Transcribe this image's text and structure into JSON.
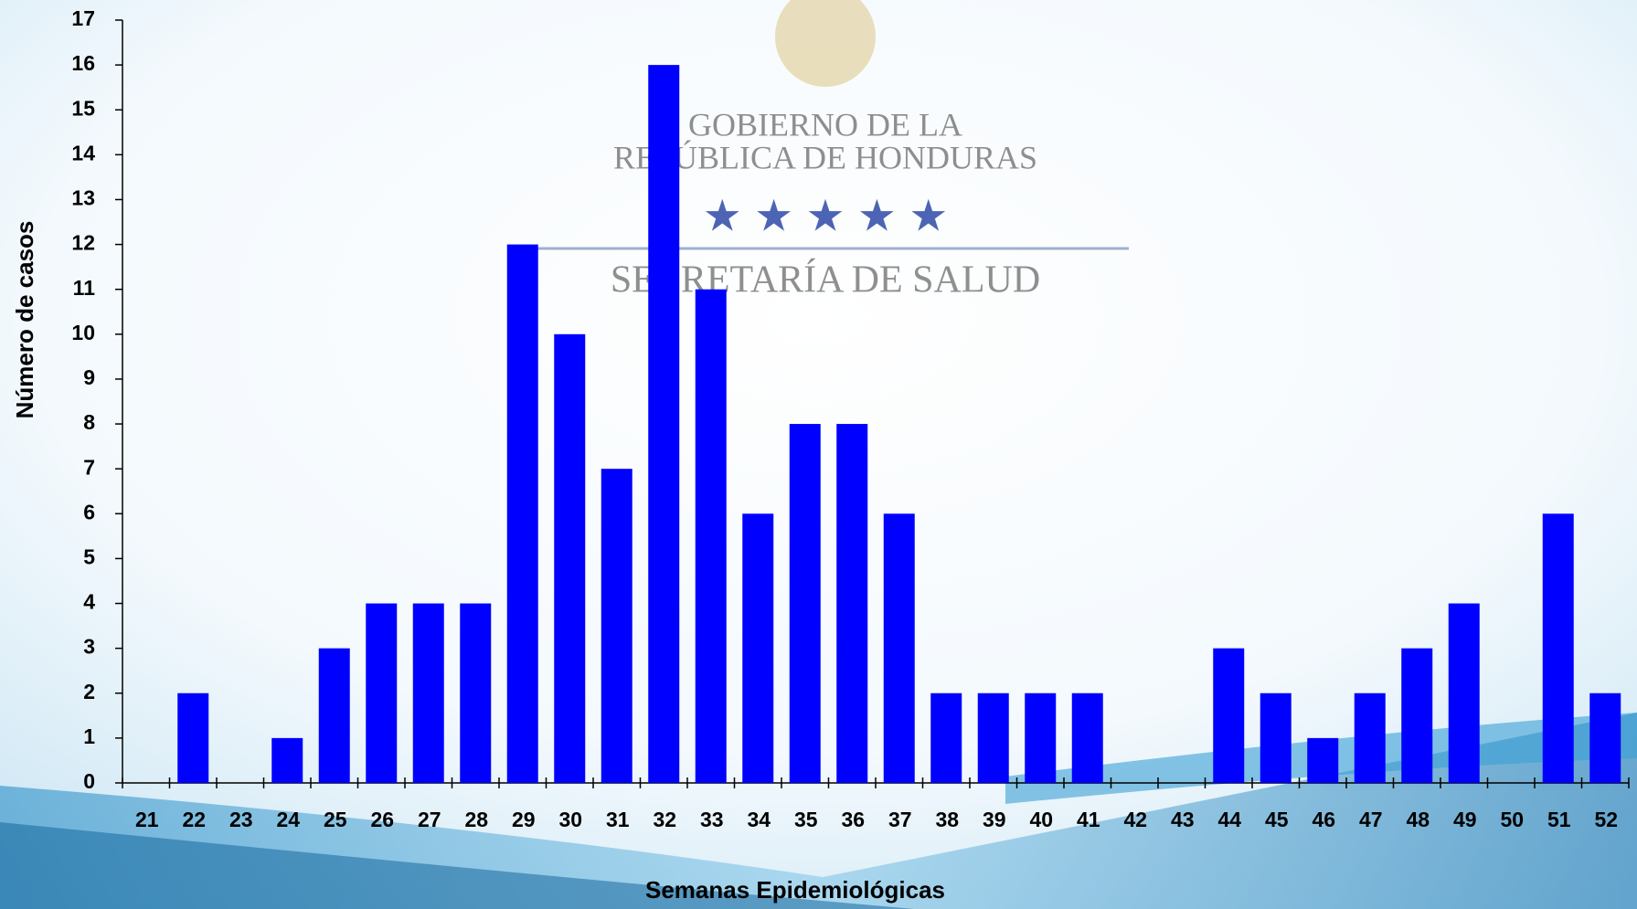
{
  "chart_data": {
    "type": "bar",
    "watermark": [
      "GOBIERNO DE LA",
      "REPÚBLICA DE HONDURAS",
      "SECRETARÍA DE SALUD"
    ],
    "x_label": "Semanas Epidemiológicas",
    "y_label": "Número de casos",
    "categories": [
      "21",
      "22",
      "23",
      "24",
      "25",
      "26",
      "27",
      "28",
      "29",
      "30",
      "31",
      "32",
      "33",
      "34",
      "35",
      "36",
      "37",
      "38",
      "39",
      "40",
      "41",
      "42",
      "43",
      "44",
      "45",
      "46",
      "47",
      "48",
      "49",
      "50",
      "51",
      "52"
    ],
    "values": [
      0,
      2,
      0,
      1,
      3,
      4,
      4,
      4,
      12,
      10,
      7,
      16,
      11,
      6,
      8,
      8,
      6,
      2,
      2,
      2,
      2,
      0,
      0,
      3,
      2,
      1,
      2,
      3,
      4,
      0,
      6,
      2
    ],
    "color": "#0000ff",
    "ylim": [
      0,
      17
    ],
    "yticks": [
      0,
      1,
      2,
      3,
      4,
      5,
      6,
      7,
      8,
      9,
      10,
      11,
      12,
      13,
      14,
      15,
      16,
      17
    ],
    "grid": false
  }
}
